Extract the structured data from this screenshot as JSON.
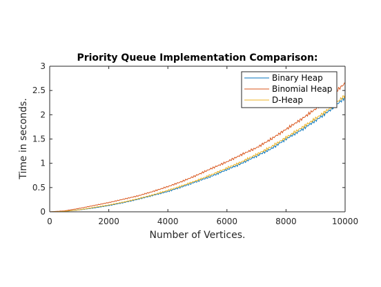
{
  "chart_data": {
    "type": "line",
    "title": "Priority Queue Implementation Comparison:",
    "xlabel": "Number of Vertices.",
    "ylabel": "Time in seconds.",
    "xlim": [
      0,
      10000
    ],
    "ylim": [
      0,
      3
    ],
    "xticks": [
      0,
      2000,
      4000,
      6000,
      8000,
      10000
    ],
    "xtick_labels": [
      "0",
      "2000",
      "4000",
      "6000",
      "8000",
      "10000"
    ],
    "yticks": [
      0,
      0.5,
      1,
      1.5,
      2,
      2.5,
      3
    ],
    "ytick_labels": [
      "0",
      "0.5",
      "1",
      "1.5",
      "2",
      "2.5",
      "3"
    ],
    "grid": false,
    "legend_position": "top-right",
    "series": [
      {
        "name": "Binary Heap",
        "color": "#0072BD",
        "x": [
          0,
          500,
          1000,
          1500,
          2000,
          2500,
          3000,
          3500,
          4000,
          4500,
          5000,
          5500,
          6000,
          6500,
          7000,
          7500,
          8000,
          8500,
          9000,
          9500,
          10000
        ],
        "values": [
          0,
          0.01,
          0.04,
          0.08,
          0.13,
          0.19,
          0.26,
          0.34,
          0.42,
          0.52,
          0.63,
          0.74,
          0.87,
          1.0,
          1.15,
          1.3,
          1.5,
          1.68,
          1.88,
          2.1,
          2.36
        ]
      },
      {
        "name": "Binomial Heap",
        "color": "#D95319",
        "x": [
          0,
          500,
          1000,
          1500,
          2000,
          2500,
          3000,
          3500,
          4000,
          4500,
          5000,
          5500,
          6000,
          6500,
          7000,
          7500,
          8000,
          8500,
          9000,
          9500,
          10000
        ],
        "values": [
          0,
          0.02,
          0.07,
          0.13,
          0.19,
          0.26,
          0.33,
          0.42,
          0.52,
          0.63,
          0.76,
          0.9,
          1.03,
          1.18,
          1.32,
          1.5,
          1.7,
          1.9,
          2.12,
          2.38,
          2.65
        ]
      },
      {
        "name": "D-Heap",
        "color": "#EDB120",
        "x": [
          0,
          500,
          1000,
          1500,
          2000,
          2500,
          3000,
          3500,
          4000,
          4500,
          5000,
          5500,
          6000,
          6500,
          7000,
          7500,
          8000,
          8500,
          9000,
          9500,
          10000
        ],
        "values": [
          0,
          0.01,
          0.04,
          0.09,
          0.14,
          0.2,
          0.27,
          0.35,
          0.44,
          0.54,
          0.65,
          0.77,
          0.9,
          1.03,
          1.18,
          1.34,
          1.53,
          1.72,
          1.92,
          2.14,
          2.4
        ]
      }
    ]
  }
}
